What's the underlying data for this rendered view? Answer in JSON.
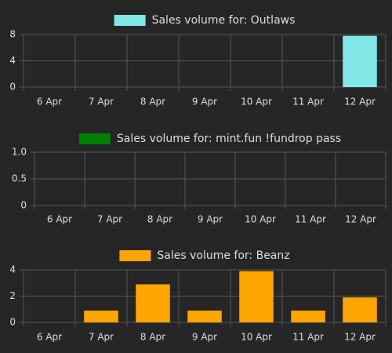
{
  "chart_data": [
    {
      "type": "bar",
      "categories": [
        "6 Apr",
        "7 Apr",
        "8 Apr",
        "9 Apr",
        "10 Apr",
        "11 Apr",
        "12 Apr"
      ],
      "series": [
        {
          "name": "Sales volume for: Outlaws",
          "color": "#80e6e6",
          "values": [
            0,
            0,
            0,
            0,
            0,
            0,
            7.8
          ]
        }
      ],
      "ylim": [
        0,
        8
      ],
      "yticks": [
        0,
        4,
        8
      ],
      "grid": true
    },
    {
      "type": "bar",
      "categories": [
        "6 Apr",
        "7 Apr",
        "8 Apr",
        "9 Apr",
        "10 Apr",
        "11 Apr",
        "12 Apr"
      ],
      "series": [
        {
          "name": "Sales volume for: mint.fun !fundrop pass",
          "color": "#008000",
          "values": [
            0,
            0,
            0,
            0,
            0,
            0,
            0
          ]
        }
      ],
      "ylim": [
        0,
        1
      ],
      "yticks": [
        0,
        0.5,
        {
          "value": 1,
          "label": "1.0"
        }
      ],
      "grid": true
    },
    {
      "type": "bar",
      "categories": [
        "6 Apr",
        "7 Apr",
        "8 Apr",
        "9 Apr",
        "10 Apr",
        "11 Apr",
        "12 Apr"
      ],
      "series": [
        {
          "name": "Sales volume for: Beanz",
          "color": "#ffa500",
          "values": [
            0,
            0.9,
            2.9,
            0.9,
            3.9,
            0.9,
            1.9
          ]
        }
      ],
      "ylim": [
        0,
        4
      ],
      "yticks": [
        0,
        2,
        4
      ],
      "grid": true
    }
  ]
}
